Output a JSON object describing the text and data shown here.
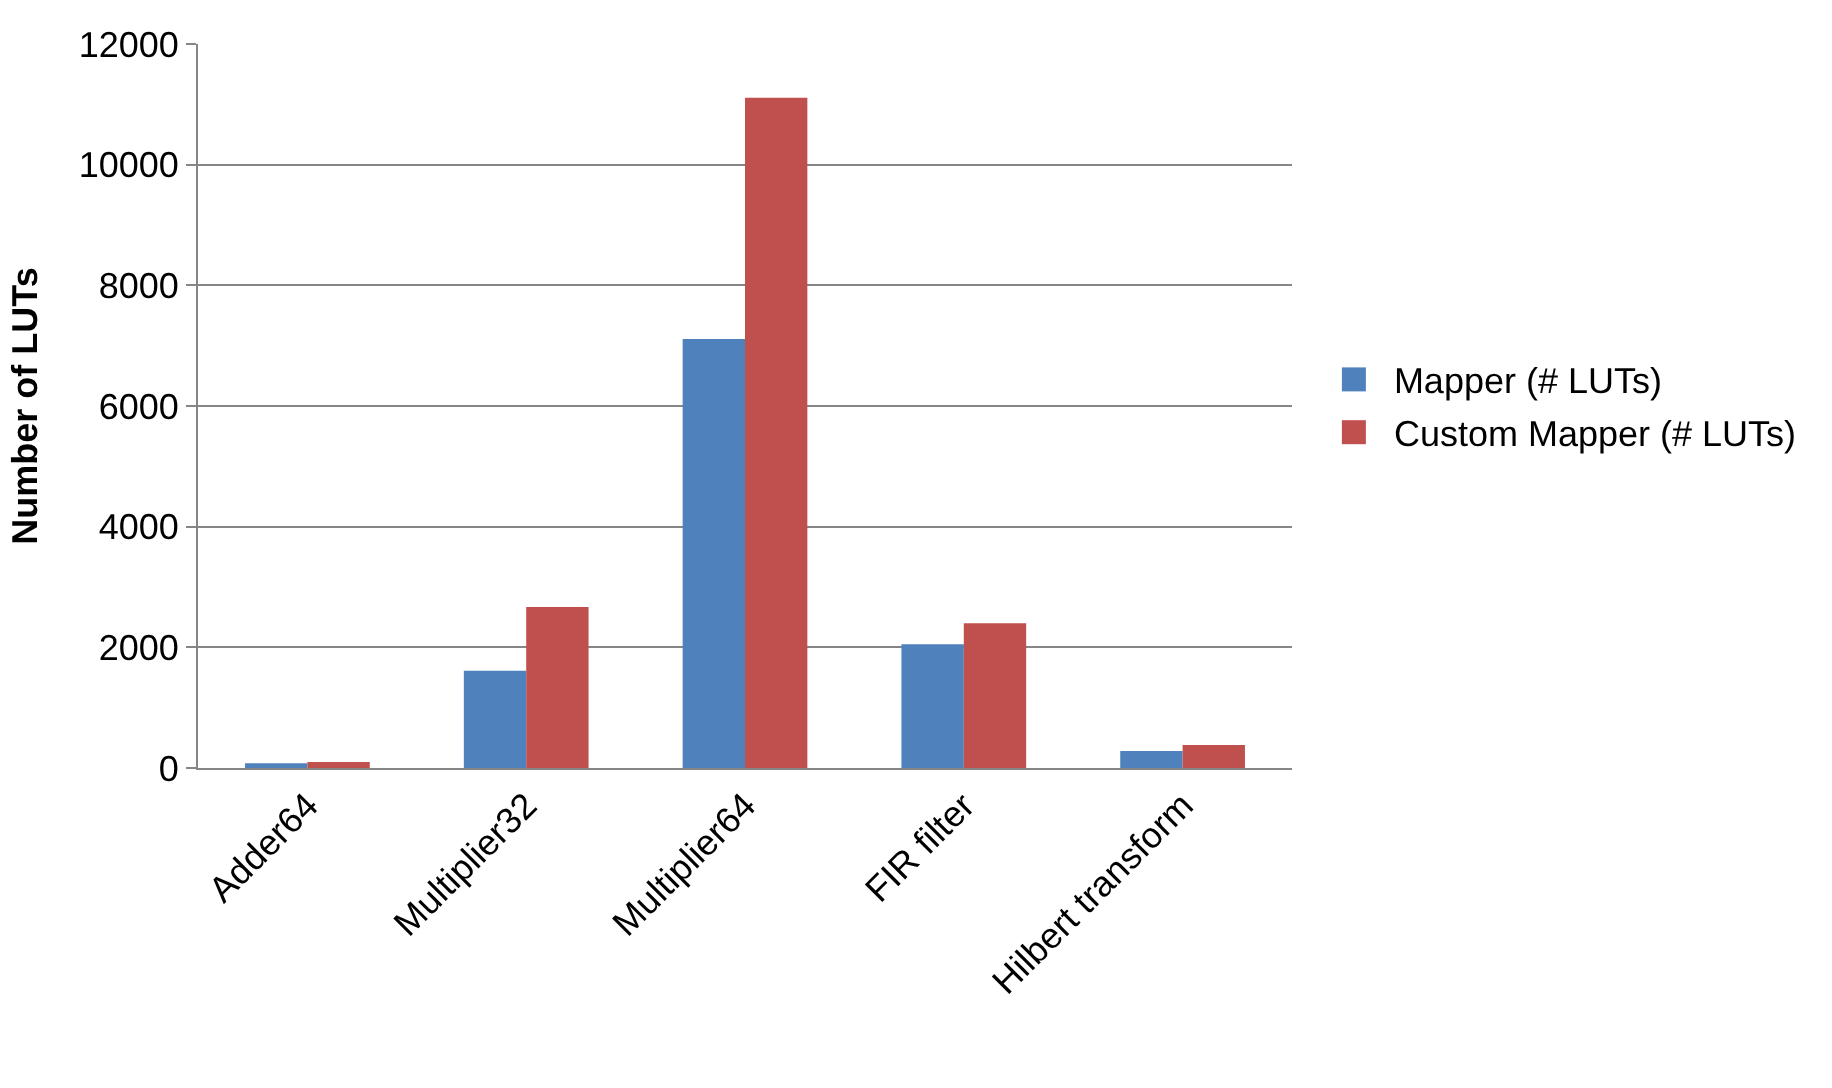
{
  "chart_data": {
    "type": "bar",
    "ylabel": "Number of LUTs",
    "categories": [
      "Adder64",
      "Multiplier32",
      "Multiplier64",
      "FIR filter",
      "Hilbert transform"
    ],
    "series": [
      {
        "name": "Mapper (# LUTs)",
        "color": "#4f81bd",
        "values": [
          80,
          1610,
          7110,
          2050,
          280
        ]
      },
      {
        "name": "Custom Mapper (# LUTs)",
        "color": "#c0504d",
        "values": [
          100,
          2670,
          11110,
          2400,
          380
        ]
      }
    ],
    "ylim": [
      0,
      12000
    ],
    "yticks": [
      0,
      2000,
      4000,
      6000,
      8000,
      10000,
      12000
    ],
    "grid": "y",
    "legend": "right"
  }
}
